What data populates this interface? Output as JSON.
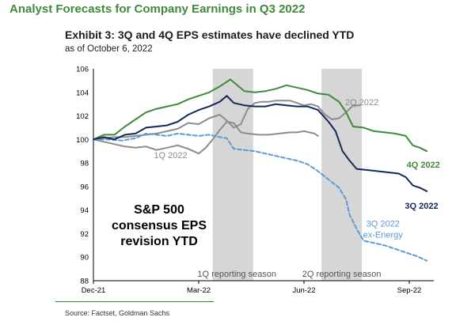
{
  "header": {
    "title": "Analyst Forecasts for Company Earnings in Q3 2022",
    "exhibit_title": "Exhibit 3: 3Q and 4Q EPS estimates have declined YTD",
    "exhibit_subtitle": "as of October 6, 2022"
  },
  "footer": {
    "source": "Source: Factset, Goldman Sachs"
  },
  "colors": {
    "q4": "#3f8a3a",
    "q3": "#14285a",
    "q2": "#8c8c8c",
    "q1": "#8c8c8c",
    "q3ex": "#5b9bd5",
    "shade": "#d6d6d6",
    "annotation": "#000000"
  },
  "chart_data": {
    "type": "line",
    "title": "Exhibit 3: 3Q and 4Q EPS estimates have declined YTD",
    "subtitle": "as of October 6, 2022",
    "xlabel": "",
    "ylabel": "",
    "x_domain_months": [
      0,
      9.7
    ],
    "ylim": [
      88,
      106
    ],
    "yticks": [
      88,
      90,
      92,
      94,
      96,
      98,
      100,
      102,
      104,
      106
    ],
    "xticks": [
      {
        "label": "Dec-21",
        "value": 0
      },
      {
        "label": "Mar-22",
        "value": 3
      },
      {
        "label": "Jun-22",
        "value": 6
      },
      {
        "label": "Sep-22",
        "value": 9
      }
    ],
    "shaded_regions": [
      {
        "label": "1Q reporting season",
        "start": 3.4,
        "end": 4.55
      },
      {
        "label": "2Q reporting season",
        "start": 6.5,
        "end": 7.65
      }
    ],
    "annotation": "S&P 500\nconsensus EPS\nrevision YTD",
    "series": [
      {
        "name": "4Q 2022",
        "key": "q4",
        "style": "solid",
        "label_at": [
          9.4,
          97.6
        ],
        "points": [
          [
            0,
            100
          ],
          [
            0.3,
            100.4
          ],
          [
            0.6,
            100.4
          ],
          [
            0.9,
            101.1
          ],
          [
            1.2,
            101.7
          ],
          [
            1.5,
            102.3
          ],
          [
            1.8,
            102.6
          ],
          [
            2.1,
            102.8
          ],
          [
            2.4,
            103.0
          ],
          [
            2.7,
            103.4
          ],
          [
            3.0,
            103.7
          ],
          [
            3.3,
            104.0
          ],
          [
            3.6,
            104.5
          ],
          [
            3.9,
            105.1
          ],
          [
            4.1,
            104.6
          ],
          [
            4.3,
            104.1
          ],
          [
            4.6,
            104.0
          ],
          [
            4.9,
            104.1
          ],
          [
            5.2,
            104.3
          ],
          [
            5.5,
            104.6
          ],
          [
            5.8,
            104.4
          ],
          [
            6.1,
            104.2
          ],
          [
            6.4,
            103.9
          ],
          [
            6.7,
            103.8
          ],
          [
            7.0,
            103.2
          ],
          [
            7.2,
            102.3
          ],
          [
            7.4,
            101.1
          ],
          [
            7.7,
            101.0
          ],
          [
            8.0,
            100.7
          ],
          [
            8.3,
            100.6
          ],
          [
            8.6,
            100.5
          ],
          [
            8.9,
            100.3
          ],
          [
            9.1,
            99.5
          ],
          [
            9.3,
            99.3
          ],
          [
            9.5,
            99.0
          ]
        ]
      },
      {
        "name": "3Q 2022",
        "key": "q3",
        "style": "solid",
        "label_at": [
          9.35,
          94.1
        ],
        "points": [
          [
            0,
            100
          ],
          [
            0.3,
            100.2
          ],
          [
            0.6,
            100.0
          ],
          [
            0.9,
            100.4
          ],
          [
            1.2,
            100.5
          ],
          [
            1.5,
            101.0
          ],
          [
            1.8,
            101.1
          ],
          [
            2.1,
            101.2
          ],
          [
            2.4,
            101.5
          ],
          [
            2.7,
            102.1
          ],
          [
            3.0,
            102.5
          ],
          [
            3.3,
            102.8
          ],
          [
            3.6,
            103.2
          ],
          [
            3.8,
            103.7
          ],
          [
            4.0,
            103.1
          ],
          [
            4.3,
            102.9
          ],
          [
            4.6,
            102.8
          ],
          [
            4.9,
            102.8
          ],
          [
            5.2,
            103.0
          ],
          [
            5.5,
            102.9
          ],
          [
            5.8,
            102.8
          ],
          [
            6.1,
            102.8
          ],
          [
            6.4,
            102.5
          ],
          [
            6.7,
            101.5
          ],
          [
            6.9,
            100.7
          ],
          [
            7.1,
            99.0
          ],
          [
            7.3,
            98.2
          ],
          [
            7.5,
            97.5
          ],
          [
            7.8,
            97.4
          ],
          [
            8.1,
            97.3
          ],
          [
            8.4,
            97.2
          ],
          [
            8.7,
            97.1
          ],
          [
            8.9,
            96.8
          ],
          [
            9.1,
            96.1
          ],
          [
            9.3,
            95.9
          ],
          [
            9.5,
            95.6
          ]
        ]
      },
      {
        "name": "2Q 2022",
        "key": "q2",
        "style": "solid",
        "label_at": [
          7.65,
          102.9
        ],
        "points": [
          [
            0,
            100
          ],
          [
            0.3,
            100.1
          ],
          [
            0.6,
            100.2
          ],
          [
            0.9,
            100.2
          ],
          [
            1.2,
            100.3
          ],
          [
            1.5,
            100.4
          ],
          [
            1.8,
            100.5
          ],
          [
            2.1,
            100.7
          ],
          [
            2.4,
            100.9
          ],
          [
            2.7,
            101.4
          ],
          [
            3.0,
            101.3
          ],
          [
            3.3,
            101.8
          ],
          [
            3.6,
            102.1
          ],
          [
            3.8,
            101.6
          ],
          [
            4.0,
            101.0
          ],
          [
            4.2,
            101.3
          ],
          [
            4.4,
            102.6
          ],
          [
            4.6,
            103.1
          ],
          [
            4.8,
            103.2
          ],
          [
            5.0,
            103.2
          ],
          [
            5.2,
            103.3
          ],
          [
            5.4,
            103.3
          ],
          [
            5.6,
            103.3
          ],
          [
            5.8,
            103.1
          ],
          [
            6.0,
            102.9
          ],
          [
            6.2,
            103.0
          ],
          [
            6.4,
            102.8
          ],
          [
            6.6,
            102.1
          ],
          [
            6.8,
            101.7
          ],
          [
            7.0,
            101.8
          ],
          [
            7.2,
            102.3
          ],
          [
            7.4,
            102.9
          ],
          [
            7.6,
            102.9
          ]
        ]
      },
      {
        "name": "1Q 2022",
        "key": "q1",
        "style": "solid",
        "label_at": [
          2.2,
          98.4
        ],
        "points": [
          [
            0,
            100
          ],
          [
            0.3,
            99.8
          ],
          [
            0.6,
            99.6
          ],
          [
            0.9,
            99.4
          ],
          [
            1.2,
            99.3
          ],
          [
            1.5,
            99.4
          ],
          [
            1.8,
            99.1
          ],
          [
            2.1,
            99.3
          ],
          [
            2.4,
            99.5
          ],
          [
            2.7,
            99.2
          ],
          [
            3.0,
            98.8
          ],
          [
            3.2,
            99.3
          ],
          [
            3.4,
            100.0
          ],
          [
            3.6,
            100.8
          ],
          [
            3.8,
            101.5
          ],
          [
            4.0,
            101.4
          ],
          [
            4.2,
            100.6
          ],
          [
            4.4,
            100.5
          ],
          [
            4.7,
            100.4
          ],
          [
            5.0,
            100.4
          ],
          [
            5.3,
            100.5
          ],
          [
            5.6,
            100.6
          ],
          [
            5.8,
            100.6
          ],
          [
            6.0,
            100.7
          ],
          [
            6.3,
            100.5
          ],
          [
            6.4,
            100.3
          ]
        ]
      },
      {
        "name": "3Q 2022 ex-Energy",
        "key": "q3ex",
        "style": "dashed",
        "label_at": [
          8.25,
          92.6
        ],
        "points": [
          [
            0,
            100
          ],
          [
            0.4,
            100.0
          ],
          [
            0.8,
            99.9
          ],
          [
            1.2,
            100.1
          ],
          [
            1.5,
            100.5
          ],
          [
            1.8,
            100.4
          ],
          [
            2.1,
            100.3
          ],
          [
            2.4,
            100.5
          ],
          [
            2.7,
            100.4
          ],
          [
            3.0,
            100.3
          ],
          [
            3.3,
            100.4
          ],
          [
            3.6,
            100.2
          ],
          [
            3.8,
            100.1
          ],
          [
            4.0,
            99.2
          ],
          [
            4.3,
            99.1
          ],
          [
            4.6,
            99.0
          ],
          [
            4.9,
            98.8
          ],
          [
            5.2,
            98.6
          ],
          [
            5.5,
            98.4
          ],
          [
            5.8,
            98.2
          ],
          [
            6.1,
            97.9
          ],
          [
            6.4,
            97.3
          ],
          [
            6.7,
            96.6
          ],
          [
            7.0,
            95.9
          ],
          [
            7.2,
            94.9
          ],
          [
            7.3,
            93.6
          ],
          [
            7.5,
            92.4
          ],
          [
            7.7,
            91.4
          ],
          [
            8.0,
            91.2
          ],
          [
            8.3,
            91.0
          ],
          [
            8.6,
            90.7
          ],
          [
            8.9,
            90.4
          ],
          [
            9.2,
            90.1
          ],
          [
            9.5,
            89.7
          ]
        ]
      }
    ]
  }
}
